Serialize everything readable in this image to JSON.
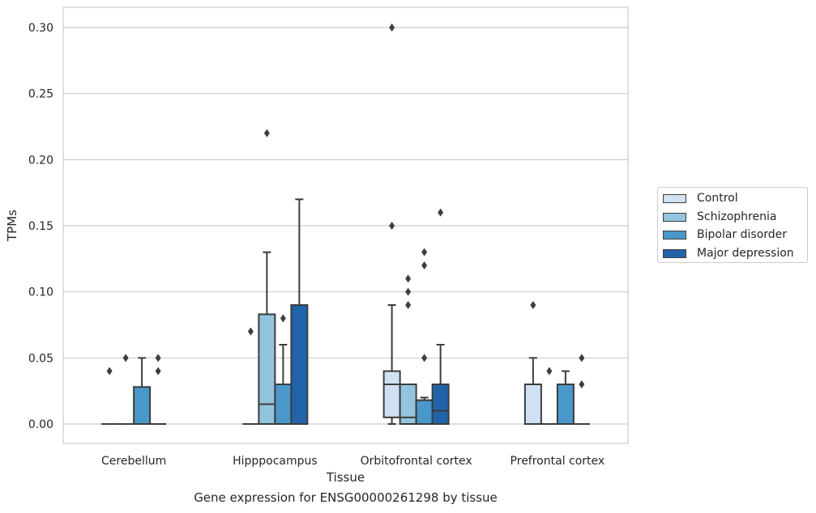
{
  "chart_data": {
    "type": "box",
    "title": "",
    "caption": "Gene expression for ENSG00000261298 by tissue",
    "xlabel": "Tissue",
    "ylabel": "TPMs",
    "ylim": [
      -0.015,
      0.315
    ],
    "yticks": [
      "0.00",
      "0.05",
      "0.10",
      "0.15",
      "0.20",
      "0.25",
      "0.30"
    ],
    "grid": true,
    "legend_position": "right",
    "categories": [
      "Cerebellum",
      "Hipppocampus",
      "Orbitofrontal cortex",
      "Prefrontal cortex"
    ],
    "series": [
      {
        "name": "Control",
        "color": "#cfe1f2",
        "boxes": [
          {
            "q1": 0,
            "median": 0,
            "q3": 0,
            "whisker_low": 0,
            "whisker_high": 0,
            "outliers": [
              0.04
            ]
          },
          {
            "q1": 0,
            "median": 0,
            "q3": 0,
            "whisker_low": 0,
            "whisker_high": 0,
            "outliers": [
              0.07
            ]
          },
          {
            "q1": 0.005,
            "median": 0.03,
            "q3": 0.04,
            "whisker_low": 0,
            "whisker_high": 0.09,
            "outliers": [
              0.15,
              0.3
            ]
          },
          {
            "q1": 0,
            "median": 0,
            "q3": 0.03,
            "whisker_low": 0,
            "whisker_high": 0.05,
            "outliers": [
              0.09
            ]
          }
        ]
      },
      {
        "name": "Schizophrenia",
        "color": "#93c4de",
        "boxes": [
          {
            "q1": 0,
            "median": 0,
            "q3": 0,
            "whisker_low": 0,
            "whisker_high": 0,
            "outliers": [
              0.05
            ]
          },
          {
            "q1": 0,
            "median": 0.015,
            "q3": 0.083,
            "whisker_low": 0,
            "whisker_high": 0.13,
            "outliers": [
              0.22
            ]
          },
          {
            "q1": 0,
            "median": 0.005,
            "q3": 0.03,
            "whisker_low": 0,
            "whisker_high": 0.03,
            "outliers": [
              0.09,
              0.1,
              0.11
            ]
          },
          {
            "q1": 0,
            "median": 0,
            "q3": 0,
            "whisker_low": 0,
            "whisker_high": 0,
            "outliers": [
              0.04
            ]
          }
        ]
      },
      {
        "name": "Bipolar disorder",
        "color": "#4a98c9",
        "boxes": [
          {
            "q1": 0,
            "median": 0,
            "q3": 0.028,
            "whisker_low": 0,
            "whisker_high": 0.05,
            "outliers": []
          },
          {
            "q1": 0,
            "median": 0.03,
            "q3": 0.03,
            "whisker_low": 0,
            "whisker_high": 0.06,
            "outliers": [
              0.08
            ]
          },
          {
            "q1": 0,
            "median": 0.018,
            "q3": 0.018,
            "whisker_low": 0,
            "whisker_high": 0.02,
            "outliers": [
              0.05,
              0.12,
              0.13
            ]
          },
          {
            "q1": 0,
            "median": 0,
            "q3": 0.03,
            "whisker_low": 0,
            "whisker_high": 0.04,
            "outliers": []
          }
        ]
      },
      {
        "name": "Major depression",
        "color": "#2163aa",
        "boxes": [
          {
            "q1": 0,
            "median": 0,
            "q3": 0,
            "whisker_low": 0,
            "whisker_high": 0,
            "outliers": [
              0.04,
              0.05
            ]
          },
          {
            "q1": 0,
            "median": 0.09,
            "q3": 0.09,
            "whisker_low": 0,
            "whisker_high": 0.17,
            "outliers": []
          },
          {
            "q1": 0,
            "median": 0.01,
            "q3": 0.03,
            "whisker_low": 0,
            "whisker_high": 0.06,
            "outliers": [
              0.16
            ]
          },
          {
            "q1": 0,
            "median": 0,
            "q3": 0,
            "whisker_low": 0,
            "whisker_high": 0,
            "outliers": [
              0.03,
              0.05
            ]
          }
        ]
      }
    ]
  }
}
